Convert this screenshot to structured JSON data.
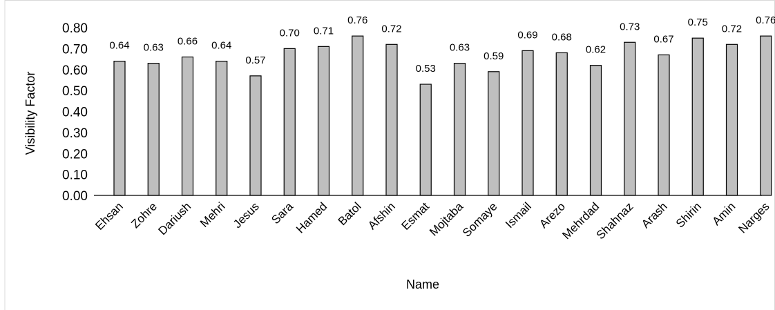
{
  "chart_data": {
    "type": "bar",
    "title": "",
    "xlabel": "Name",
    "ylabel": "Visibility  Factor",
    "ylim": [
      0,
      0.8
    ],
    "ytick_step": 0.1,
    "grid": false,
    "legend": "none",
    "colors": {
      "bar_fill": "#bfbfbf",
      "bar_stroke": "#000000"
    },
    "categories": [
      "Ehsan",
      "Zohre",
      "Dariush",
      "Mehri",
      "Jesus",
      "Sara",
      "Hamed",
      "Batol",
      "Afshin",
      "Esmat",
      "Mojtaba",
      "Somaye",
      "Ismail",
      "Arezo",
      "Mehrdad",
      "Shahnaz",
      "Arash",
      "Shirin",
      "Amin",
      "Narges"
    ],
    "values": [
      0.64,
      0.63,
      0.66,
      0.64,
      0.57,
      0.7,
      0.71,
      0.76,
      0.72,
      0.53,
      0.63,
      0.59,
      0.69,
      0.68,
      0.62,
      0.73,
      0.67,
      0.75,
      0.72,
      0.76
    ],
    "value_labels": [
      "0.64",
      "0.63",
      "0.66",
      "0.64",
      "0.57",
      "0.70",
      "0.71",
      "0.76",
      "0.72",
      "0.53",
      "0.63",
      "0.59",
      "0.69",
      "0.68",
      "0.62",
      "0.73",
      "0.67",
      "0.75",
      "0.72",
      "0.76"
    ],
    "ytick_labels": [
      "0.00",
      "0.10",
      "0.20",
      "0.30",
      "0.40",
      "0.50",
      "0.60",
      "0.70",
      "0.80"
    ]
  }
}
